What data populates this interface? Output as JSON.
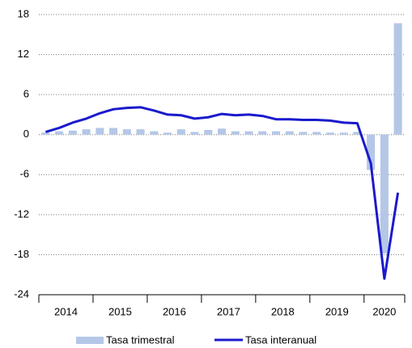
{
  "chart_data": {
    "type": "bar_line",
    "categories": [
      null,
      null,
      null,
      null,
      null,
      null,
      null,
      null,
      null,
      null,
      null,
      null,
      null,
      null,
      null,
      null,
      null,
      null,
      null,
      null,
      null,
      null,
      null,
      null,
      null,
      null,
      null
    ],
    "years": [
      "2014",
      "2015",
      "2016",
      "2017",
      "2018",
      "2019",
      "2020"
    ],
    "series": [
      {
        "name": "Tasa trimestral",
        "type": "bar",
        "color": "#b4c7e7",
        "values": [
          0.3,
          0.5,
          0.6,
          0.8,
          1.0,
          1.0,
          0.8,
          0.8,
          0.5,
          0.3,
          0.8,
          0.4,
          0.7,
          0.9,
          0.5,
          0.5,
          0.5,
          0.5,
          0.5,
          0.4,
          0.4,
          0.3,
          0.3,
          0.4,
          -5.3,
          -17.8,
          16.7
        ]
      },
      {
        "name": "Tasa interanual",
        "type": "line",
        "color": "#1a1acc",
        "values": [
          0.4,
          1.0,
          1.8,
          2.4,
          3.2,
          3.8,
          4.0,
          4.1,
          3.6,
          3.0,
          2.9,
          2.4,
          2.6,
          3.1,
          2.9,
          3.0,
          2.8,
          2.3,
          2.3,
          2.2,
          2.2,
          2.1,
          1.8,
          1.7,
          -4.3,
          -21.6,
          -8.7
        ]
      }
    ],
    "ylim": [
      -24,
      18
    ],
    "yticks": [
      -24,
      -18,
      -12,
      -6,
      0,
      6,
      12,
      18
    ],
    "grid": true
  }
}
